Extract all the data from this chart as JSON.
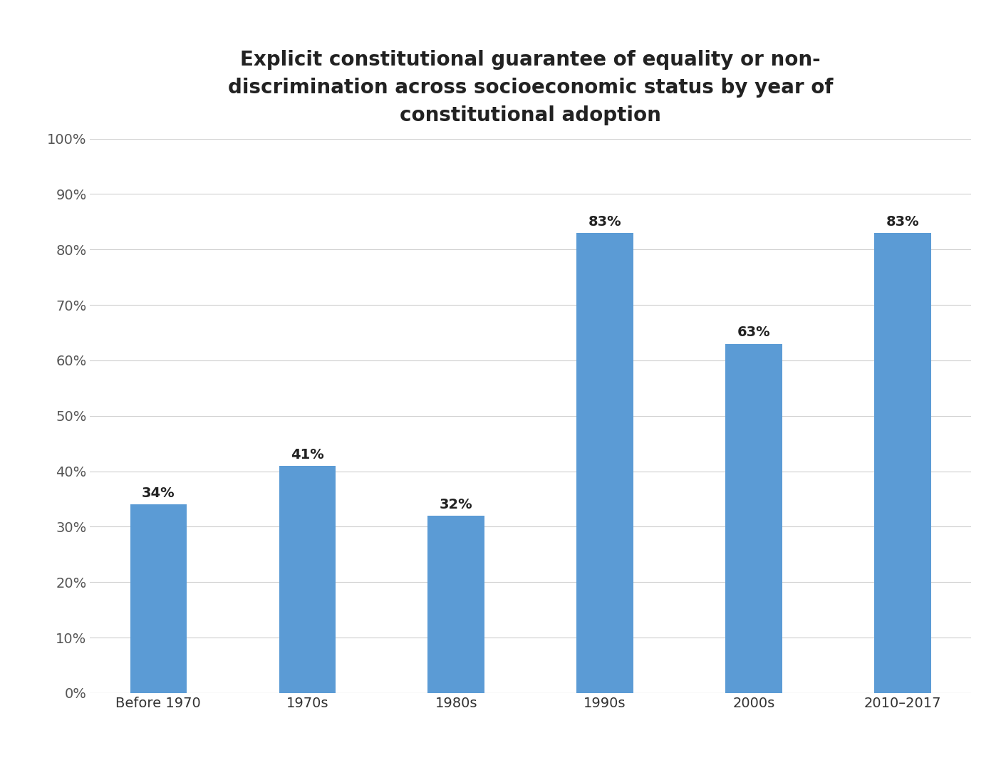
{
  "categories": [
    "Before 1970",
    "1970s",
    "1980s",
    "1990s",
    "2000s",
    "2010–2017"
  ],
  "values": [
    34,
    41,
    32,
    83,
    63,
    83
  ],
  "bar_color": "#5b9bd5",
  "title_line1": "Explicit constitutional guarantee of equality or non-",
  "title_line2": "discrimination across socioeconomic status by year of",
  "title_line3": "constitutional adoption",
  "ylim": [
    0,
    100
  ],
  "yticks": [
    0,
    10,
    20,
    30,
    40,
    50,
    60,
    70,
    80,
    90,
    100
  ],
  "background_color": "#ffffff",
  "grid_color": "#d0d0d0",
  "title_fontsize": 20,
  "tick_fontsize": 14,
  "label_fontsize": 14,
  "bar_width": 0.38
}
